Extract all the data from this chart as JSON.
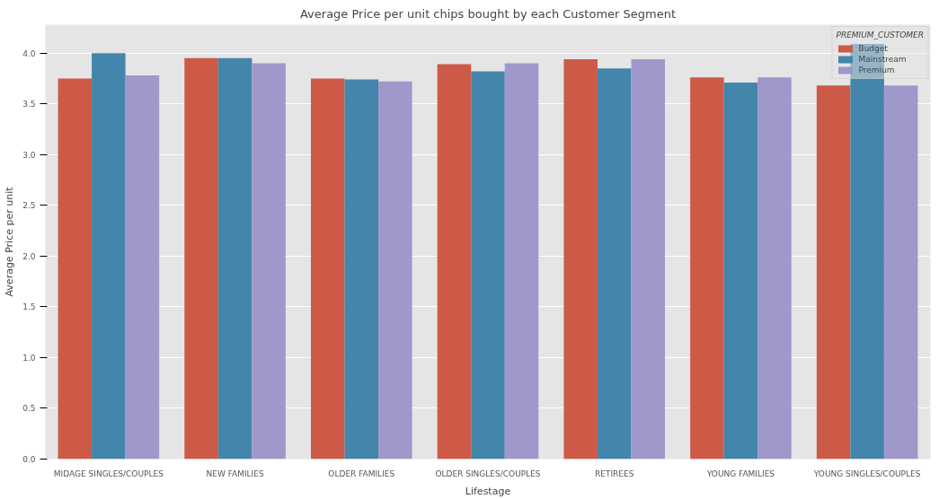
{
  "chart_data": {
    "type": "bar",
    "title": "Average Price per unit chips bought by each Customer Segment",
    "xlabel": "Lifestage",
    "ylabel": "Average Price per unit",
    "legend_title": "PREMIUM_CUSTOMER",
    "categories": [
      "MIDAGE SINGLES/COUPLES",
      "NEW FAMILIES",
      "OLDER FAMILIES",
      "OLDER SINGLES/COUPLES",
      "RETIREES",
      "YOUNG FAMILIES",
      "YOUNG SINGLES/COUPLES"
    ],
    "series": [
      {
        "name": "Budget",
        "color": "#cc5a47",
        "values": [
          3.75,
          3.95,
          3.75,
          3.89,
          3.94,
          3.76,
          3.68
        ]
      },
      {
        "name": "Mainstream",
        "color": "#4485ab",
        "values": [
          4.0,
          3.95,
          3.74,
          3.82,
          3.85,
          3.71,
          4.09
        ]
      },
      {
        "name": "Premium",
        "color": "#9e98cb",
        "values": [
          3.78,
          3.9,
          3.72,
          3.9,
          3.94,
          3.76,
          3.68
        ]
      }
    ],
    "ylim": [
      0,
      4.28
    ],
    "yticks": [
      {
        "value": 0,
        "label": "0.0"
      },
      0.5,
      {
        "value": 1,
        "label": "1.0"
      },
      1.5,
      {
        "value": 2,
        "label": "2.0"
      },
      2.5,
      {
        "value": 3,
        "label": "3.0"
      },
      3.5,
      {
        "value": 4,
        "label": "4.0"
      }
    ],
    "grid": "y",
    "legend": "top right"
  }
}
